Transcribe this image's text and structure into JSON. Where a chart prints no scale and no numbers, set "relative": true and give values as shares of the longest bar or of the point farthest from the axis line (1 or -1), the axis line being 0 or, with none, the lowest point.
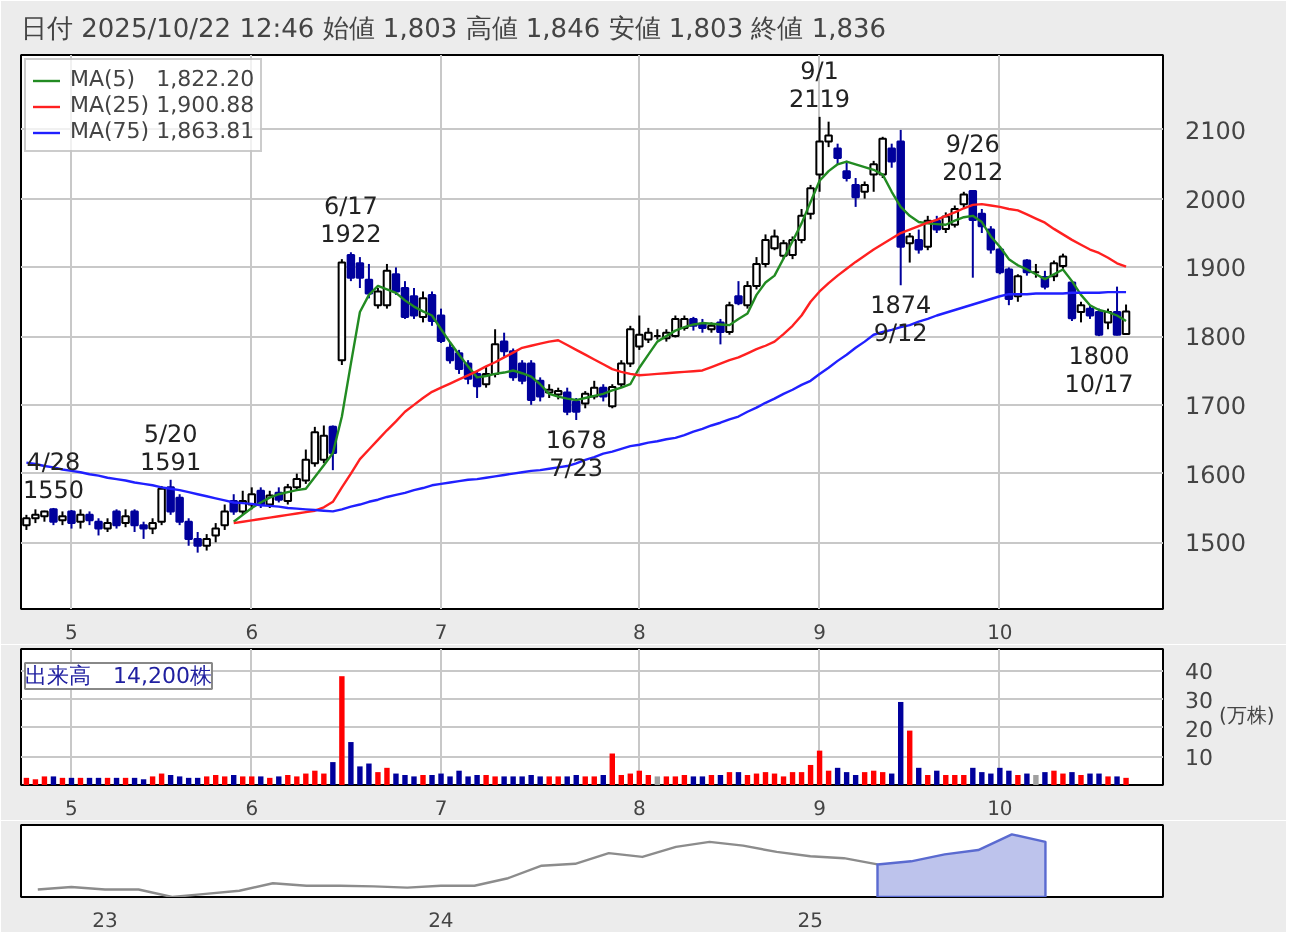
{
  "chart_data": [
    {
      "type": "candlestick",
      "title": "日付 2025/10/22 12:46  始値 1,803    高値 1,846    安値 1,803    終値 1,836",
      "colors": [
        "#ffffff",
        "#ffffff",
        "#ffffff",
        "#00009c",
        "#ffffff",
        "#00009c",
        "#ffffff",
        "#00009c",
        "#00009c",
        "#ffffff",
        "#00009c",
        "#ffffff",
        "#00009c",
        "#00009c",
        "#ffffff",
        "#ffffff",
        "#00009c",
        "#00009c",
        "#00009c",
        "#00009c",
        "#ffffff",
        "#ffffff",
        "#ffffff",
        "#00009c",
        "#ffffff",
        "#ffffff",
        "#00009c",
        "#ffffff",
        "#00009c",
        "#ffffff",
        "#ffffff",
        "#ffffff",
        "#ffffff",
        "#ffffff",
        "#00009c",
        "#ffffff",
        "#00009c",
        "#00009c",
        "#00009c",
        "#ffffff",
        "#ffffff",
        "#00009c",
        "#00009c",
        "#00009c",
        "#ffffff",
        "#00009c",
        "#00009c",
        "#00009c",
        "#00009c",
        "#00009c",
        "#00009c",
        "#ffffff",
        "#ffffff",
        "#00009c",
        "#00009c",
        "#00009c",
        "#00009c",
        "#00009c",
        "#ffffff",
        "#ffffff",
        "#00009c",
        "#00009c",
        "#ffffff",
        "#ffffff",
        "#00009c",
        "#ffffff",
        "#ffffff",
        "#ffffff",
        "#ffffff",
        "#ffffff",
        "#000000",
        "#ffffff",
        "#ffffff",
        "#ffffff",
        "#00009c",
        "#00009c",
        "#ffffff",
        "#00009c",
        "#ffffff",
        "#00009c",
        "#ffffff",
        "#ffffff",
        "#ffffff",
        "#ffffff",
        "#ffffff",
        "#ffffff",
        "#ffffff",
        "#ffffff",
        "#ffffff",
        "#ffffff",
        "#00009c",
        "#00009c",
        "#00009c",
        "#ffffff",
        "#ffffff",
        "#ffffff",
        "#00009c",
        "#00009c",
        "#ffffff",
        "#00009c",
        "#ffffff",
        "#00009c",
        "#ffffff",
        "#ffffff",
        "#ffffff",
        "#00009c",
        "#00009c",
        "#00009c",
        "#00009c",
        "#00009c",
        "#ffffff",
        "#00009c",
        "#000000",
        "#00009c",
        "#ffffff",
        "#ffffff",
        "#00009c",
        "#ffffff",
        "#00009c",
        "#00009c",
        "#ffffff",
        "#00009c",
        "#ffffff"
      ],
      "grid": true,
      "legend": "top left",
      "categories": [
        null,
        null,
        null,
        null,
        null,
        "5",
        null,
        null,
        null,
        null,
        null,
        null,
        null,
        null,
        null,
        null,
        null,
        null,
        null,
        null,
        null,
        null,
        null,
        null,
        null,
        "6",
        null,
        null,
        null,
        null,
        null,
        null,
        null,
        null,
        null,
        null,
        null,
        null,
        null,
        null,
        null,
        null,
        null,
        null,
        null,
        null,
        "7",
        null,
        null,
        null,
        null,
        null,
        null,
        null,
        null,
        null,
        null,
        null,
        null,
        null,
        null,
        null,
        null,
        null,
        null,
        null,
        null,
        null,
        "8",
        null,
        null,
        null,
        null,
        null,
        null,
        null,
        null,
        null,
        null,
        null,
        null,
        null,
        null,
        null,
        null,
        null,
        null,
        null,
        "9",
        null,
        null,
        null,
        null,
        null,
        null,
        null,
        null,
        null,
        null,
        null,
        null,
        null,
        null,
        null,
        null,
        null,
        null,
        null,
        "10",
        null,
        null,
        null,
        null,
        null,
        null,
        null,
        null,
        null,
        null,
        null,
        null,
        null,
        null
      ],
      "ylim": [
        1403,
        2209
      ],
      "yticks": [
        1500,
        1600,
        1700,
        1800,
        1900,
        2000,
        2100
      ],
      "ohlc": [
        [
          1525,
          1540,
          1518,
          1535
        ],
        [
          1535,
          1548,
          1528,
          1540
        ],
        [
          1538,
          1546,
          1530,
          1545
        ],
        [
          1548,
          1550,
          1525,
          1530
        ],
        [
          1532,
          1545,
          1525,
          1538
        ],
        [
          1545,
          1547,
          1520,
          1528
        ],
        [
          1530,
          1548,
          1520,
          1540
        ],
        [
          1540,
          1545,
          1525,
          1532
        ],
        [
          1530,
          1535,
          1510,
          1520
        ],
        [
          1520,
          1535,
          1515,
          1528
        ],
        [
          1545,
          1548,
          1520,
          1525
        ],
        [
          1528,
          1548,
          1522,
          1538
        ],
        [
          1545,
          1548,
          1515,
          1525
        ],
        [
          1525,
          1530,
          1505,
          1520
        ],
        [
          1520,
          1535,
          1512,
          1528
        ],
        [
          1530,
          1582,
          1525,
          1578
        ],
        [
          1580,
          1591,
          1540,
          1545
        ],
        [
          1565,
          1570,
          1525,
          1530
        ],
        [
          1530,
          1535,
          1495,
          1505
        ],
        [
          1505,
          1515,
          1485,
          1495
        ],
        [
          1495,
          1512,
          1488,
          1505
        ],
        [
          1510,
          1528,
          1500,
          1520
        ],
        [
          1525,
          1555,
          1518,
          1545
        ],
        [
          1560,
          1570,
          1540,
          1545
        ],
        [
          1545,
          1575,
          1540,
          1560
        ],
        [
          1555,
          1580,
          1548,
          1570
        ],
        [
          1575,
          1580,
          1550,
          1555
        ],
        [
          1555,
          1575,
          1550,
          1568
        ],
        [
          1572,
          1580,
          1558,
          1562
        ],
        [
          1560,
          1585,
          1555,
          1580
        ],
        [
          1580,
          1600,
          1575,
          1592
        ],
        [
          1590,
          1635,
          1585,
          1620
        ],
        [
          1615,
          1668,
          1610,
          1660
        ],
        [
          1620,
          1670,
          1615,
          1655
        ],
        [
          1668,
          1670,
          1605,
          1630
        ],
        [
          1765,
          1912,
          1758,
          1907
        ],
        [
          1918,
          1922,
          1880,
          1885
        ],
        [
          1906,
          1915,
          1870,
          1885
        ],
        [
          1882,
          1905,
          1855,
          1862
        ],
        [
          1845,
          1870,
          1840,
          1865
        ],
        [
          1845,
          1905,
          1840,
          1895
        ],
        [
          1890,
          1900,
          1860,
          1865
        ],
        [
          1870,
          1880,
          1825,
          1828
        ],
        [
          1858,
          1870,
          1825,
          1830
        ],
        [
          1828,
          1865,
          1820,
          1855
        ],
        [
          1860,
          1865,
          1815,
          1822
        ],
        [
          1830,
          1840,
          1790,
          1793
        ],
        [
          1783,
          1790,
          1760,
          1765
        ],
        [
          1775,
          1780,
          1745,
          1752
        ],
        [
          1760,
          1765,
          1730,
          1738
        ],
        [
          1745,
          1750,
          1710,
          1727
        ],
        [
          1730,
          1755,
          1725,
          1745
        ],
        [
          1745,
          1810,
          1740,
          1788
        ],
        [
          1792,
          1805,
          1770,
          1778
        ],
        [
          1778,
          1782,
          1735,
          1740
        ],
        [
          1760,
          1765,
          1730,
          1735
        ],
        [
          1760,
          1765,
          1700,
          1707
        ],
        [
          1735,
          1740,
          1705,
          1712
        ],
        [
          1718,
          1730,
          1710,
          1722
        ],
        [
          1715,
          1725,
          1708,
          1720
        ],
        [
          1718,
          1725,
          1685,
          1690
        ],
        [
          1705,
          1710,
          1678,
          1690
        ],
        [
          1702,
          1720,
          1695,
          1716
        ],
        [
          1712,
          1735,
          1708,
          1725
        ],
        [
          1725,
          1730,
          1705,
          1712
        ],
        [
          1698,
          1730,
          1695,
          1726
        ],
        [
          1730,
          1765,
          1725,
          1760
        ],
        [
          1760,
          1815,
          1755,
          1810
        ],
        [
          1785,
          1830,
          1780,
          1802
        ],
        [
          1795,
          1812,
          1790,
          1805
        ],
        [
          1800,
          1810,
          1795,
          1800
        ],
        [
          1797,
          1810,
          1792,
          1805
        ],
        [
          1800,
          1830,
          1798,
          1825
        ],
        [
          1812,
          1830,
          1808,
          1825
        ],
        [
          1825,
          1828,
          1808,
          1815
        ],
        [
          1818,
          1825,
          1805,
          1812
        ],
        [
          1810,
          1820,
          1805,
          1815
        ],
        [
          1820,
          1825,
          1788,
          1806
        ],
        [
          1806,
          1850,
          1802,
          1845
        ],
        [
          1858,
          1880,
          1845,
          1848
        ],
        [
          1845,
          1880,
          1840,
          1873
        ],
        [
          1873,
          1915,
          1868,
          1905
        ],
        [
          1905,
          1948,
          1900,
          1940
        ],
        [
          1928,
          1955,
          1925,
          1945
        ],
        [
          1917,
          1940,
          1912,
          1935
        ],
        [
          1918,
          1945,
          1912,
          1940
        ],
        [
          1940,
          1985,
          1935,
          1975
        ],
        [
          1978,
          2020,
          1970,
          2015
        ],
        [
          2035,
          2119,
          2010,
          2083
        ],
        [
          2083,
          2112,
          2075,
          2092
        ],
        [
          2073,
          2080,
          2050,
          2059
        ],
        [
          2040,
          2055,
          2025,
          2030
        ],
        [
          2020,
          2030,
          1988,
          2002
        ],
        [
          2010,
          2025,
          2000,
          2020
        ],
        [
          2035,
          2055,
          2010,
          2050
        ],
        [
          2035,
          2090,
          2030,
          2087
        ],
        [
          2073,
          2080,
          2045,
          2054
        ],
        [
          2083,
          2100,
          1874,
          1930
        ],
        [
          1935,
          1950,
          1907,
          1945
        ],
        [
          1940,
          1955,
          1920,
          1926
        ],
        [
          1930,
          1975,
          1925,
          1968
        ],
        [
          1968,
          1975,
          1950,
          1955
        ],
        [
          1956,
          1980,
          1950,
          1974
        ],
        [
          1962,
          1990,
          1958,
          1985
        ],
        [
          1992,
          2010,
          1985,
          2006
        ],
        [
          2011,
          2012,
          1885,
          1969
        ],
        [
          1978,
          1985,
          1950,
          1960
        ],
        [
          1955,
          1960,
          1920,
          1926
        ],
        [
          1926,
          1930,
          1890,
          1893
        ],
        [
          1897,
          1900,
          1845,
          1854
        ],
        [
          1858,
          1890,
          1850,
          1887
        ],
        [
          1910,
          1912,
          1888,
          1893
        ],
        [
          1893,
          1905,
          1885,
          1893
        ],
        [
          1886,
          1895,
          1868,
          1872
        ],
        [
          1887,
          1910,
          1880,
          1906
        ],
        [
          1902,
          1920,
          1898,
          1916
        ],
        [
          1878,
          1880,
          1822,
          1826
        ],
        [
          1835,
          1850,
          1820,
          1845
        ],
        [
          1840,
          1845,
          1825,
          1830
        ],
        [
          1835,
          1840,
          1800,
          1802
        ],
        [
          1820,
          1840,
          1810,
          1835
        ],
        [
          1835,
          1872,
          1801,
          1802
        ],
        [
          1803,
          1846,
          1803,
          1836
        ]
      ],
      "series": [
        {
          "name": "MA(5)   1,822.20",
          "type": "line",
          "color": "#228b22",
          "values": [
            null,
            null,
            null,
            null,
            null,
            null,
            null,
            null,
            null,
            null,
            null,
            null,
            null,
            null,
            null,
            null,
            null,
            null,
            null,
            null,
            null,
            null,
            null,
            1530,
            1540,
            1550,
            1558,
            1565,
            1570,
            1573,
            1576,
            1578,
            1595,
            1612,
            1630,
            1683,
            1760,
            1835,
            1860,
            1873,
            1868,
            1863,
            1852,
            1843,
            1836,
            1830,
            1810,
            1791,
            1773,
            1756,
            1740,
            1742,
            1745,
            1747,
            1750,
            1746,
            1741,
            1730,
            1716,
            1712,
            1709,
            1707,
            1710,
            1713,
            1716,
            1721,
            1725,
            1730,
            1754,
            1773,
            1792,
            1800,
            1808,
            1813,
            1817,
            1819,
            1818,
            1817,
            1816,
            1825,
            1833,
            1860,
            1878,
            1888,
            1913,
            1938,
            1964,
            1995,
            2026,
            2040,
            2050,
            2054,
            2050,
            2046,
            2042,
            2035,
            2010,
            1988,
            1975,
            1966,
            1964,
            1963,
            1962,
            1968,
            1973,
            1975,
            1966,
            1945,
            1930,
            1912,
            1903,
            1897,
            1890,
            1883,
            1890,
            1897,
            1880,
            1860,
            1845,
            1838,
            1835,
            1830,
            1822
          ]
        },
        {
          "name": "MA(25) 1,900.88",
          "type": "line",
          "color": "#ff2020",
          "values": [
            null,
            null,
            null,
            null,
            null,
            null,
            null,
            null,
            null,
            null,
            null,
            null,
            null,
            null,
            null,
            null,
            null,
            null,
            null,
            null,
            null,
            null,
            null,
            1528,
            1530,
            1532,
            1534,
            1536,
            1538,
            1540,
            1542,
            1544,
            1546,
            1551,
            1559,
            1580,
            1600,
            1621,
            1635,
            1649,
            1663,
            1676,
            1690,
            1700,
            1710,
            1719,
            1725,
            1731,
            1737,
            1743,
            1749,
            1756,
            1762,
            1769,
            1776,
            1783,
            1786,
            1789,
            1792,
            1794,
            1787,
            1780,
            1773,
            1766,
            1759,
            1752,
            1748,
            1745,
            1743,
            1744,
            1745,
            1746,
            1747,
            1748,
            1749,
            1750,
            1755,
            1760,
            1765,
            1769,
            1775,
            1781,
            1786,
            1792,
            1803,
            1815,
            1830,
            1850,
            1865,
            1877,
            1888,
            1898,
            1908,
            1917,
            1926,
            1934,
            1942,
            1950,
            1955,
            1960,
            1965,
            1969,
            1975,
            1980,
            1986,
            1991,
            1992,
            1990,
            1988,
            1985,
            1983,
            1977,
            1971,
            1965,
            1956,
            1948,
            1940,
            1933,
            1926,
            1921,
            1914,
            1906,
            1901
          ]
        },
        {
          "name": "MA(75) 1,863.81",
          "type": "line",
          "color": "#2020ff",
          "values": [
            1616,
            1614,
            1611,
            1609,
            1606,
            1604,
            1602,
            1599,
            1597,
            1594,
            1592,
            1590,
            1587,
            1585,
            1583,
            1580,
            1578,
            1576,
            1573,
            1570,
            1567,
            1564,
            1561,
            1558,
            1557,
            1556,
            1554,
            1553,
            1552,
            1550,
            1549,
            1548,
            1547,
            1546,
            1545,
            1548,
            1552,
            1555,
            1559,
            1562,
            1566,
            1569,
            1572,
            1576,
            1579,
            1583,
            1585,
            1587,
            1589,
            1591,
            1592,
            1594,
            1596,
            1598,
            1600,
            1602,
            1604,
            1605,
            1607,
            1609,
            1611,
            1615,
            1620,
            1624,
            1629,
            1632,
            1636,
            1640,
            1642,
            1645,
            1647,
            1650,
            1652,
            1656,
            1661,
            1665,
            1670,
            1674,
            1679,
            1683,
            1690,
            1696,
            1703,
            1709,
            1716,
            1722,
            1729,
            1735,
            1745,
            1754,
            1764,
            1773,
            1783,
            1792,
            1802,
            1806,
            1809,
            1813,
            1816,
            1821,
            1825,
            1830,
            1834,
            1838,
            1842,
            1846,
            1850,
            1854,
            1858,
            1861,
            1861,
            1861,
            1862,
            1862,
            1862,
            1862,
            1863,
            1863,
            1863,
            1863,
            1864,
            1864,
            1864
          ]
        }
      ],
      "annotations": [
        {
          "text": "4/28\n1550",
          "y": 1550
        },
        {
          "text": "5/20\n1591",
          "y": 1591
        },
        {
          "text": "6/17\n1922",
          "y": 1922
        },
        {
          "text": "1678\n7/23",
          "y": 1678
        },
        {
          "text": "9/1\n2119",
          "y": 2119
        },
        {
          "text": "1874\n9/12",
          "y": 1874
        },
        {
          "text": "9/26\n2012",
          "y": 2012
        },
        {
          "text": "1800\n10/17",
          "y": 1800
        }
      ]
    },
    {
      "type": "bar",
      "title": "出来高　14,200株",
      "ylabel": "(万株)",
      "grid": true,
      "categories": [
        null,
        null,
        null,
        null,
        null,
        "5",
        null,
        null,
        null,
        null,
        null,
        null,
        null,
        null,
        null,
        null,
        null,
        null,
        null,
        null,
        null,
        null,
        null,
        null,
        null,
        "6",
        null,
        null,
        null,
        null,
        null,
        null,
        null,
        null,
        null,
        null,
        null,
        null,
        null,
        null,
        null,
        null,
        null,
        null,
        null,
        null,
        "7",
        null,
        null,
        null,
        null,
        null,
        null,
        null,
        null,
        null,
        null,
        null,
        null,
        null,
        null,
        null,
        null,
        null,
        null,
        null,
        null,
        null,
        "8",
        null,
        null,
        null,
        null,
        null,
        null,
        null,
        null,
        null,
        null,
        null,
        null,
        null,
        null,
        null,
        null,
        null,
        null,
        null,
        "9",
        null,
        null,
        null,
        null,
        null,
        null,
        null,
        null,
        null,
        null,
        null,
        null,
        null,
        null,
        null,
        null,
        null,
        null,
        null,
        "10",
        null,
        null,
        null,
        null,
        null,
        null,
        null,
        null,
        null,
        null,
        null,
        null,
        null,
        null
      ],
      "ylim": [
        0,
        47.5
      ],
      "yticks": [
        10,
        20,
        30,
        40
      ],
      "values": [
        2.5,
        2,
        3,
        3,
        2.5,
        2.5,
        2.5,
        2.5,
        2.5,
        2.5,
        2.5,
        2.5,
        2.5,
        2,
        3,
        4,
        3.5,
        3,
        2.5,
        2.5,
        3,
        3.5,
        3,
        3.5,
        3,
        3,
        3,
        2.5,
        3,
        3.5,
        3,
        4,
        5,
        4,
        8,
        38,
        15,
        6.5,
        7.5,
        4.5,
        6,
        4,
        3.5,
        3,
        3.5,
        3.5,
        4,
        3,
        5,
        3,
        3.5,
        3.5,
        3,
        3,
        3,
        3,
        3.5,
        3,
        3,
        3,
        3,
        3.5,
        3,
        3,
        3.5,
        11,
        3.5,
        4,
        5,
        3.5,
        3,
        3,
        3,
        3.5,
        3,
        3,
        3.5,
        3.5,
        4.5,
        4.5,
        3.5,
        4,
        4.5,
        4,
        3,
        4.5,
        4.5,
        7,
        12,
        5,
        6,
        4.5,
        3.5,
        4.5,
        5,
        4.5,
        4,
        29,
        19,
        6,
        3.5,
        5,
        3.5,
        3.5,
        3.5,
        6,
        4.5,
        4,
        6,
        5,
        3.5,
        4,
        3.5,
        4.5,
        5,
        4,
        4.5,
        3.5,
        4,
        4,
        3,
        3,
        2.5
      ],
      "colors": [
        "#ff0000",
        "#ff0000",
        "#ff0000",
        "#00009c",
        "#ff0000",
        "#00009c",
        "#ff0000",
        "#00009c",
        "#00009c",
        "#ff0000",
        "#00009c",
        "#ff0000",
        "#00009c",
        "#00009c",
        "#ff0000",
        "#ff0000",
        "#00009c",
        "#00009c",
        "#00009c",
        "#00009c",
        "#ff0000",
        "#ff0000",
        "#ff0000",
        "#00009c",
        "#ff0000",
        "#ff0000",
        "#00009c",
        "#ff0000",
        "#00009c",
        "#ff0000",
        "#ff0000",
        "#ff0000",
        "#ff0000",
        "#ff0000",
        "#00009c",
        "#ff0000",
        "#00009c",
        "#00009c",
        "#00009c",
        "#ff0000",
        "#ff0000",
        "#00009c",
        "#00009c",
        "#00009c",
        "#ff0000",
        "#00009c",
        "#00009c",
        "#00009c",
        "#00009c",
        "#00009c",
        "#00009c",
        "#ff0000",
        "#ff0000",
        "#00009c",
        "#00009c",
        "#00009c",
        "#00009c",
        "#00009c",
        "#ff0000",
        "#ff0000",
        "#00009c",
        "#00009c",
        "#ff0000",
        "#ff0000",
        "#00009c",
        "#ff0000",
        "#ff0000",
        "#ff0000",
        "#ff0000",
        "#ff0000",
        "#a0a0a0",
        "#ff0000",
        "#ff0000",
        "#ff0000",
        "#00009c",
        "#00009c",
        "#ff0000",
        "#00009c",
        "#ff0000",
        "#00009c",
        "#ff0000",
        "#ff0000",
        "#ff0000",
        "#ff0000",
        "#ff0000",
        "#ff0000",
        "#ff0000",
        "#ff0000",
        "#ff0000",
        "#ff0000",
        "#00009c",
        "#00009c",
        "#00009c",
        "#ff0000",
        "#ff0000",
        "#ff0000",
        "#00009c",
        "#00009c",
        "#ff0000",
        "#00009c",
        "#ff0000",
        "#00009c",
        "#ff0000",
        "#ff0000",
        "#ff0000",
        "#00009c",
        "#00009c",
        "#00009c",
        "#00009c",
        "#00009c",
        "#ff0000",
        "#00009c",
        "#a0a0a0",
        "#00009c",
        "#ff0000",
        "#ff0000",
        "#00009c",
        "#ff0000",
        "#00009c",
        "#00009c",
        "#ff0000",
        "#00009c",
        "#ff0000"
      ]
    },
    {
      "type": "line",
      "relative": true,
      "categories": [
        null,
        null,
        "23",
        null,
        null,
        null,
        null,
        null,
        null,
        null,
        null,
        null,
        "24",
        null,
        null,
        null,
        null,
        null,
        null,
        null,
        null,
        null,
        null,
        "25",
        null,
        null,
        null,
        null,
        null,
        null,
        null
      ],
      "series": [
        {
          "color": "#8c8c8c",
          "values": [
            0.12,
            0.16,
            0.12,
            0.12,
            0,
            0.05,
            0.1,
            0.22,
            0.18,
            0.18,
            0.17,
            0.15,
            0.18,
            0.18,
            0.3,
            0.5,
            0.53,
            0.7,
            0.64,
            0.8,
            0.88,
            0.82,
            0.72,
            0.65,
            0.62,
            0.52,
            null,
            null,
            null,
            null,
            null
          ]
        },
        {
          "type": "area",
          "color": "#5a6ad0",
          "values": [
            null,
            null,
            null,
            null,
            null,
            null,
            null,
            null,
            null,
            null,
            null,
            null,
            null,
            null,
            null,
            null,
            null,
            null,
            null,
            null,
            null,
            null,
            null,
            null,
            null,
            0.52,
            0.57,
            0.68,
            0.75,
            1,
            0.88
          ]
        }
      ]
    }
  ]
}
